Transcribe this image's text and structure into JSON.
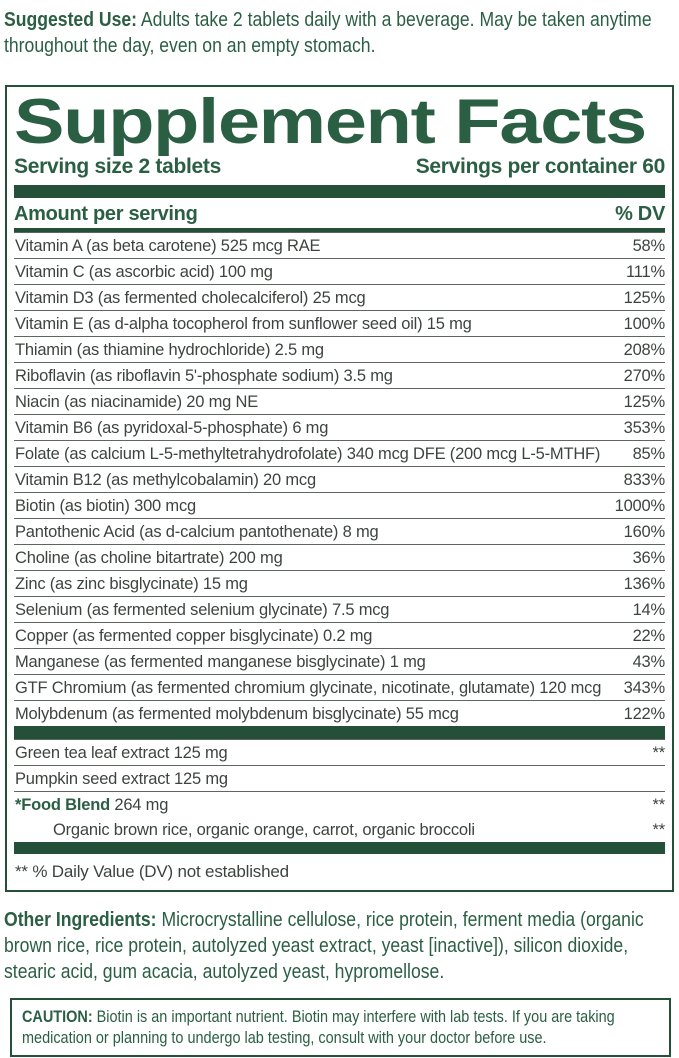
{
  "suggested_use": {
    "label": "Suggested Use:",
    "text": " Adults take 2 tablets daily with a beverage. May be taken anytime throughout the day, even on an empty stomach."
  },
  "panel": {
    "title": "Supplement Facts",
    "serving_size": "Serving size 2 tablets",
    "servings_per_container": "Servings per container 60",
    "columns": {
      "amount": "Amount per serving",
      "dv": "% DV"
    },
    "nutrients": [
      {
        "name": "Vitamin A (as beta carotene) 525 mcg RAE",
        "dv": "58%"
      },
      {
        "name": "Vitamin C (as ascorbic acid) 100 mg",
        "dv": "111%"
      },
      {
        "name": "Vitamin D3 (as fermented cholecalciferol) 25 mcg",
        "dv": "125%"
      },
      {
        "name": "Vitamin E (as d-alpha tocopherol from sunflower seed oil) 15 mg",
        "dv": "100%"
      },
      {
        "name": "Thiamin (as thiamine hydrochloride) 2.5 mg",
        "dv": "208%"
      },
      {
        "name": "Riboflavin (as riboflavin 5'-phosphate sodium) 3.5 mg",
        "dv": "270%"
      },
      {
        "name": "Niacin (as niacinamide) 20 mg NE",
        "dv": "125%"
      },
      {
        "name": "Vitamin B6 (as pyridoxal-5-phosphate) 6 mg",
        "dv": "353%"
      },
      {
        "name": "Folate (as calcium L-5-methyltetrahydrofolate) 340 mcg DFE (200 mcg L-5-MTHF)",
        "dv": "85%"
      },
      {
        "name": "Vitamin B12 (as methylcobalamin) 20 mcg",
        "dv": "833%"
      },
      {
        "name": "Biotin (as biotin) 300 mcg",
        "dv": "1000%"
      },
      {
        "name": "Pantothenic Acid (as d-calcium pantothenate) 8 mg",
        "dv": "160%"
      },
      {
        "name": "Choline (as choline bitartrate) 200 mg",
        "dv": "36%"
      },
      {
        "name": "Zinc (as zinc bisglycinate) 15 mg",
        "dv": "136%"
      },
      {
        "name": "Selenium (as fermented selenium glycinate) 7.5 mcg",
        "dv": "14%"
      },
      {
        "name": "Copper (as fermented copper bisglycinate) 0.2 mg",
        "dv": "22%"
      },
      {
        "name": "Manganese (as fermented manganese bisglycinate) 1 mg",
        "dv": "43%"
      },
      {
        "name": "GTF Chromium (as fermented chromium glycinate, nicotinate, glutamate) 120 mcg",
        "dv": "343%"
      },
      {
        "name": "Molybdenum (as fermented molybdenum bisglycinate) 55 mcg",
        "dv": "122%"
      }
    ],
    "extras": [
      {
        "name": "Green tea leaf extract 125 mg",
        "dv": "**"
      },
      {
        "name": "Pumpkin seed extract 125 mg",
        "dv": ""
      }
    ],
    "food_blend": {
      "label": "*Food Blend",
      "amount": " 264 mg",
      "dv": "**",
      "components": "Organic brown rice, organic orange, carrot, organic broccoli",
      "components_dv": "**"
    },
    "footnote": "** % Daily Value (DV) not established"
  },
  "other_ingredients": {
    "label": "Other Ingredients:",
    "text": " Microcrystalline cellulose, rice protein, ferment media (organic brown rice, rice protein, autolyzed yeast extract, yeast [inactive]), silicon dioxide, stearic acid, gum acacia, autolyzed yeast, hypromellose."
  },
  "caution": {
    "label": "CAUTION:",
    "text": " Biotin is an important nutrient. Biotin may interfere with lab tests. If you are taking medication or planning to undergo lab testing, consult with your doctor before use."
  },
  "colors": {
    "green": "#2b5f43",
    "green_dark": "#24503a",
    "text": "#3d443f"
  }
}
